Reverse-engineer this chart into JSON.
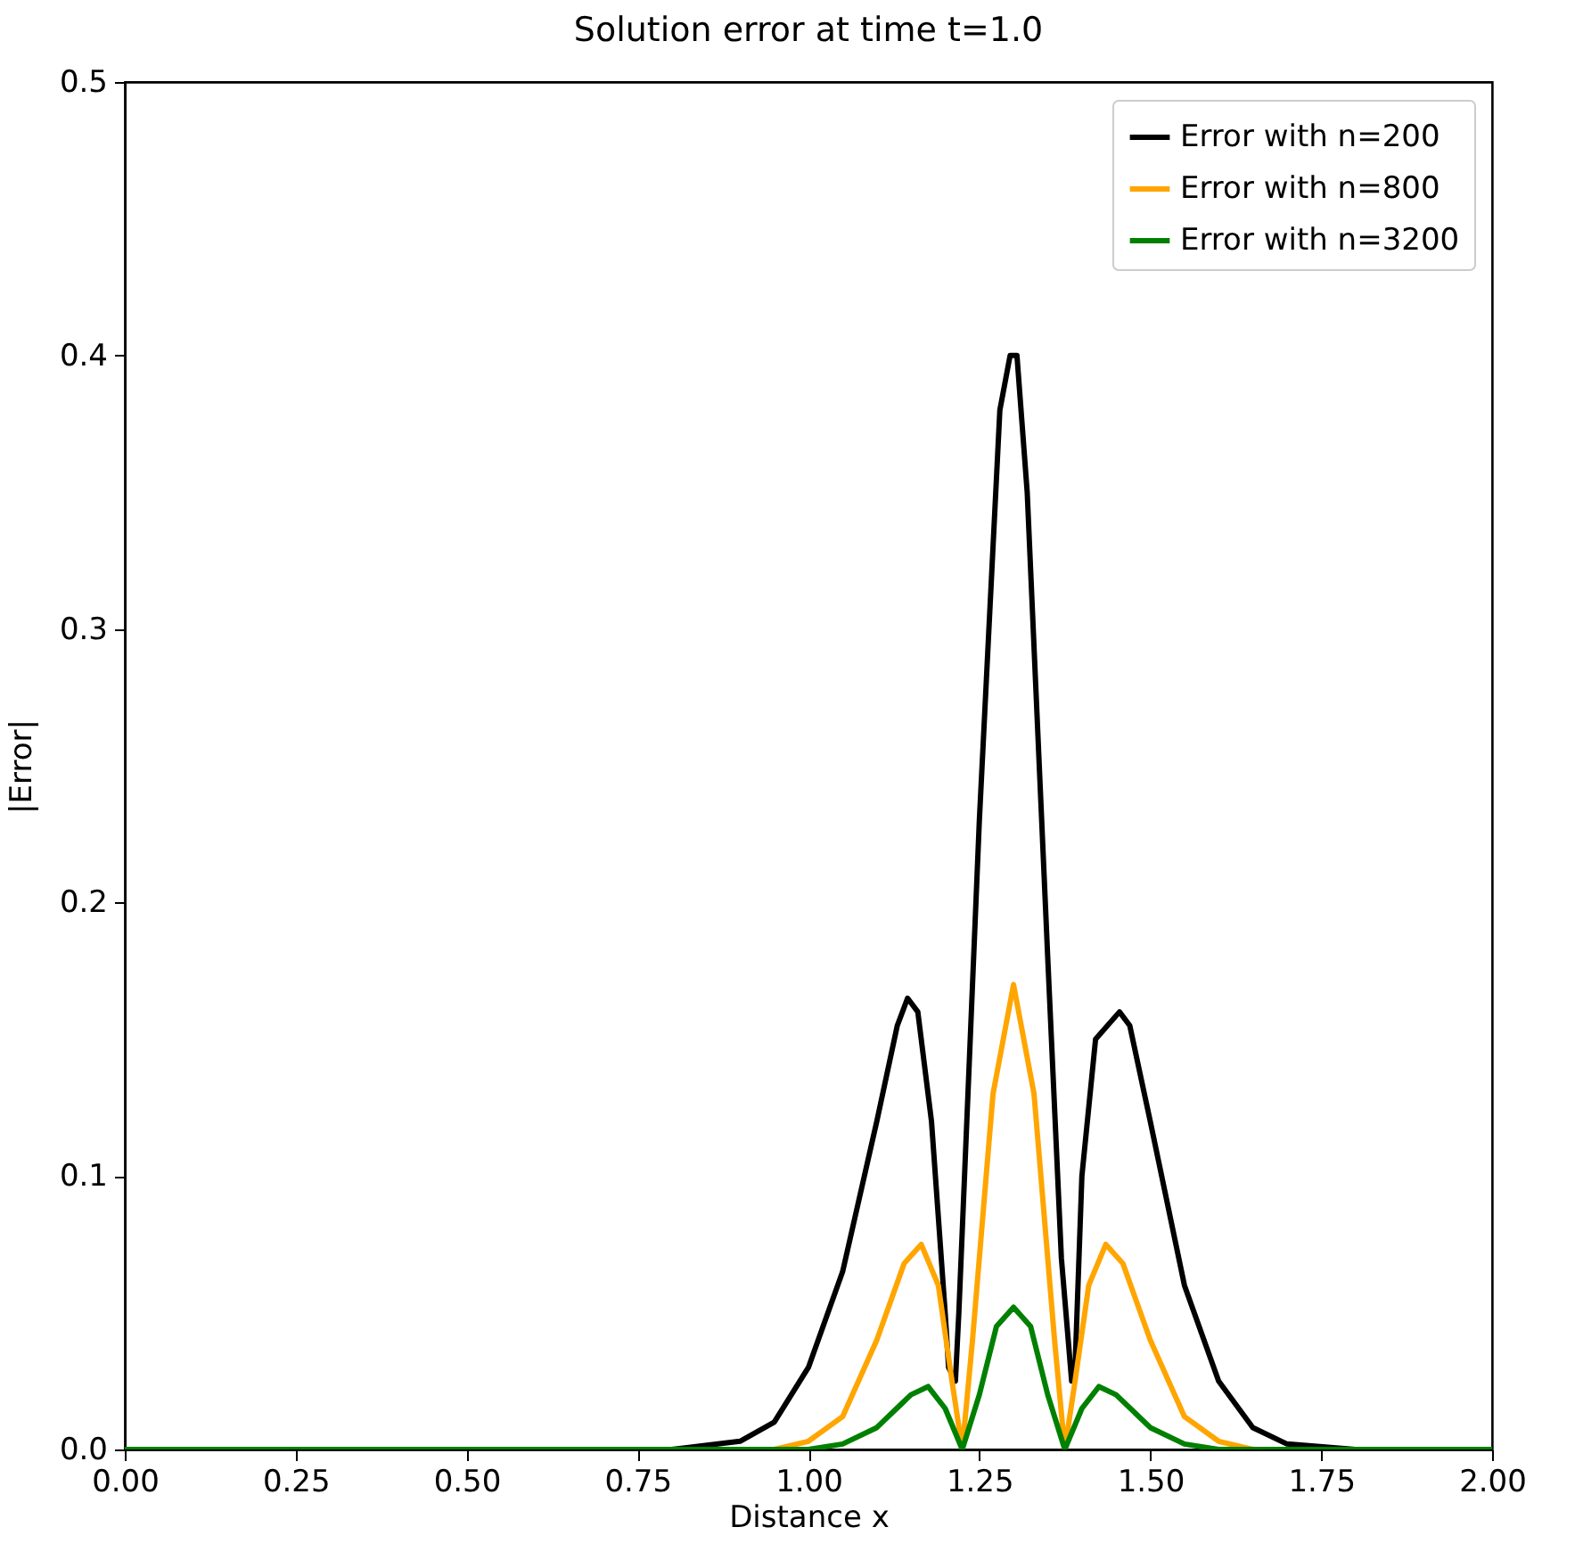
{
  "chart_data": {
    "type": "line",
    "title": "Solution error at time t=1.0",
    "xlabel": "Distance x",
    "ylabel": "|Error|",
    "xlim": [
      0,
      2
    ],
    "ylim": [
      0,
      0.5
    ],
    "xticks": [
      {
        "value": 0,
        "label": "0.00"
      },
      0.25,
      {
        "value": 0.5,
        "label": "0.50"
      },
      0.75,
      {
        "value": 1,
        "label": "1.00"
      },
      1.25,
      {
        "value": 1.5,
        "label": "1.50"
      },
      1.75,
      {
        "value": 2,
        "label": "2.00"
      }
    ],
    "yticks": [
      {
        "value": 0,
        "label": "0.0"
      },
      0.1,
      0.2,
      0.3,
      0.4,
      0.5
    ],
    "grid": false,
    "legend": "top right",
    "line_style": "solid",
    "marker": "none",
    "series": [
      {
        "name": "Error with n=200",
        "color": "#000000",
        "x": [
          0,
          0.8,
          0.9,
          0.95,
          1.0,
          1.05,
          1.1,
          1.13,
          1.145,
          1.16,
          1.18,
          1.2,
          1.205,
          1.215,
          1.22,
          1.25,
          1.28,
          1.295,
          1.305,
          1.32,
          1.35,
          1.37,
          1.385,
          1.39,
          1.4,
          1.42,
          1.455,
          1.47,
          1.5,
          1.55,
          1.6,
          1.65,
          1.7,
          1.8,
          2.0
        ],
        "values": [
          0,
          0,
          0.003,
          0.01,
          0.03,
          0.065,
          0.12,
          0.155,
          0.165,
          0.16,
          0.12,
          0.05,
          0.03,
          0.025,
          0.05,
          0.23,
          0.38,
          0.4,
          0.4,
          0.35,
          0.18,
          0.07,
          0.025,
          0.03,
          0.1,
          0.15,
          0.16,
          0.155,
          0.12,
          0.06,
          0.025,
          0.008,
          0.002,
          0,
          0
        ]
      },
      {
        "name": "Error with n=800",
        "color": "#ffa500",
        "x": [
          0,
          0.95,
          1.0,
          1.05,
          1.1,
          1.14,
          1.165,
          1.19,
          1.21,
          1.225,
          1.24,
          1.27,
          1.3,
          1.33,
          1.36,
          1.375,
          1.39,
          1.41,
          1.435,
          1.46,
          1.5,
          1.55,
          1.6,
          1.65,
          2.0
        ],
        "values": [
          0,
          0,
          0.003,
          0.012,
          0.04,
          0.068,
          0.075,
          0.06,
          0.025,
          0,
          0.04,
          0.13,
          0.17,
          0.13,
          0.04,
          0,
          0.025,
          0.06,
          0.075,
          0.068,
          0.04,
          0.012,
          0.003,
          0,
          0
        ]
      },
      {
        "name": "Error with n=3200",
        "color": "#008000",
        "x": [
          0,
          1.0,
          1.05,
          1.1,
          1.15,
          1.175,
          1.2,
          1.225,
          1.25,
          1.275,
          1.3,
          1.325,
          1.35,
          1.375,
          1.4,
          1.425,
          1.45,
          1.5,
          1.55,
          1.6,
          2.0
        ],
        "values": [
          0,
          0,
          0.002,
          0.008,
          0.02,
          0.023,
          0.015,
          0,
          0.02,
          0.045,
          0.052,
          0.045,
          0.02,
          0,
          0.015,
          0.023,
          0.02,
          0.008,
          0.002,
          0,
          0
        ]
      }
    ]
  }
}
